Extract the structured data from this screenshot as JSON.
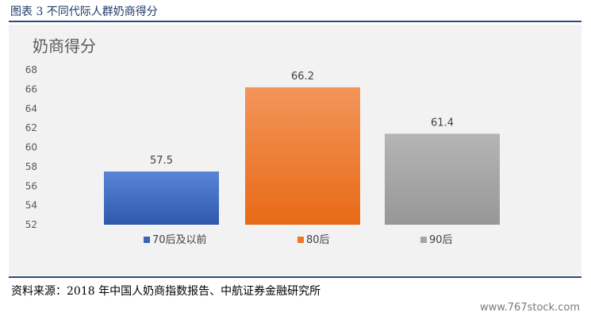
{
  "figure": {
    "caption": "图表  3 不同代际人群奶商得分",
    "source": "资料来源：2018 年中国人奶商指数报告、中航证券金融研究所",
    "watermark": "www.767stock.com"
  },
  "chart_data": {
    "type": "bar",
    "title": "奶商得分",
    "categories": [
      "70后及以前",
      "80后",
      "90后"
    ],
    "values": [
      57.5,
      66.2,
      61.4
    ],
    "colors": [
      "#3a64b8",
      "#ee7626",
      "#a5a5a5"
    ],
    "ylim": [
      52,
      68
    ],
    "yticks": [
      52,
      54,
      56,
      58,
      60,
      62,
      64,
      66,
      68
    ],
    "legend_position": "bottom",
    "grid": false,
    "xlabel": "",
    "ylabel": ""
  }
}
